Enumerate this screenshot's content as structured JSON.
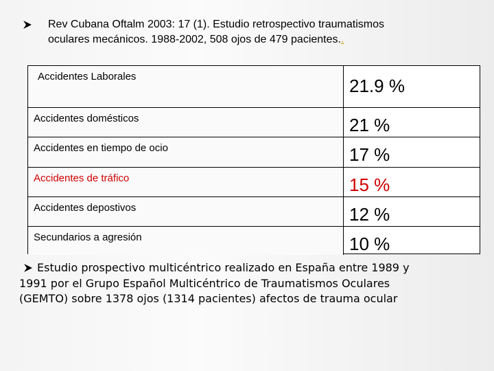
{
  "header": {
    "lines": [
      "Rev Cubana Oftalm 2003: 17 (1). Estudio retrospectivo traumatismos",
      "oculares mecánicos. 1988-2002, 508 ojos de 479 pacientes."
    ],
    "link": "."
  },
  "table": {
    "rows": [
      [
        "Accidentes Laborales",
        "21.9 %"
      ],
      [
        "Accidentes domésticos",
        "21 %"
      ],
      [
        "Accidentes en tiempo de ocio",
        "17 %"
      ],
      [
        "Accidentes de tráfico",
        "15 %"
      ],
      [
        "Accidentes depostivos",
        "12 %"
      ],
      [
        "Secundarios a agresión",
        "10 %"
      ]
    ]
  },
  "footer": {
    "lines": [
      "Estudio prospectivo multicéntrico realizado en España entre 1989 y",
      "1991 por el Grupo Español Multicéntrico de Traumatismos Oculares",
      "(GEMTO) sobre 1378 ojos (1314 pacientes) afectos de trauma ocular"
    ]
  }
}
